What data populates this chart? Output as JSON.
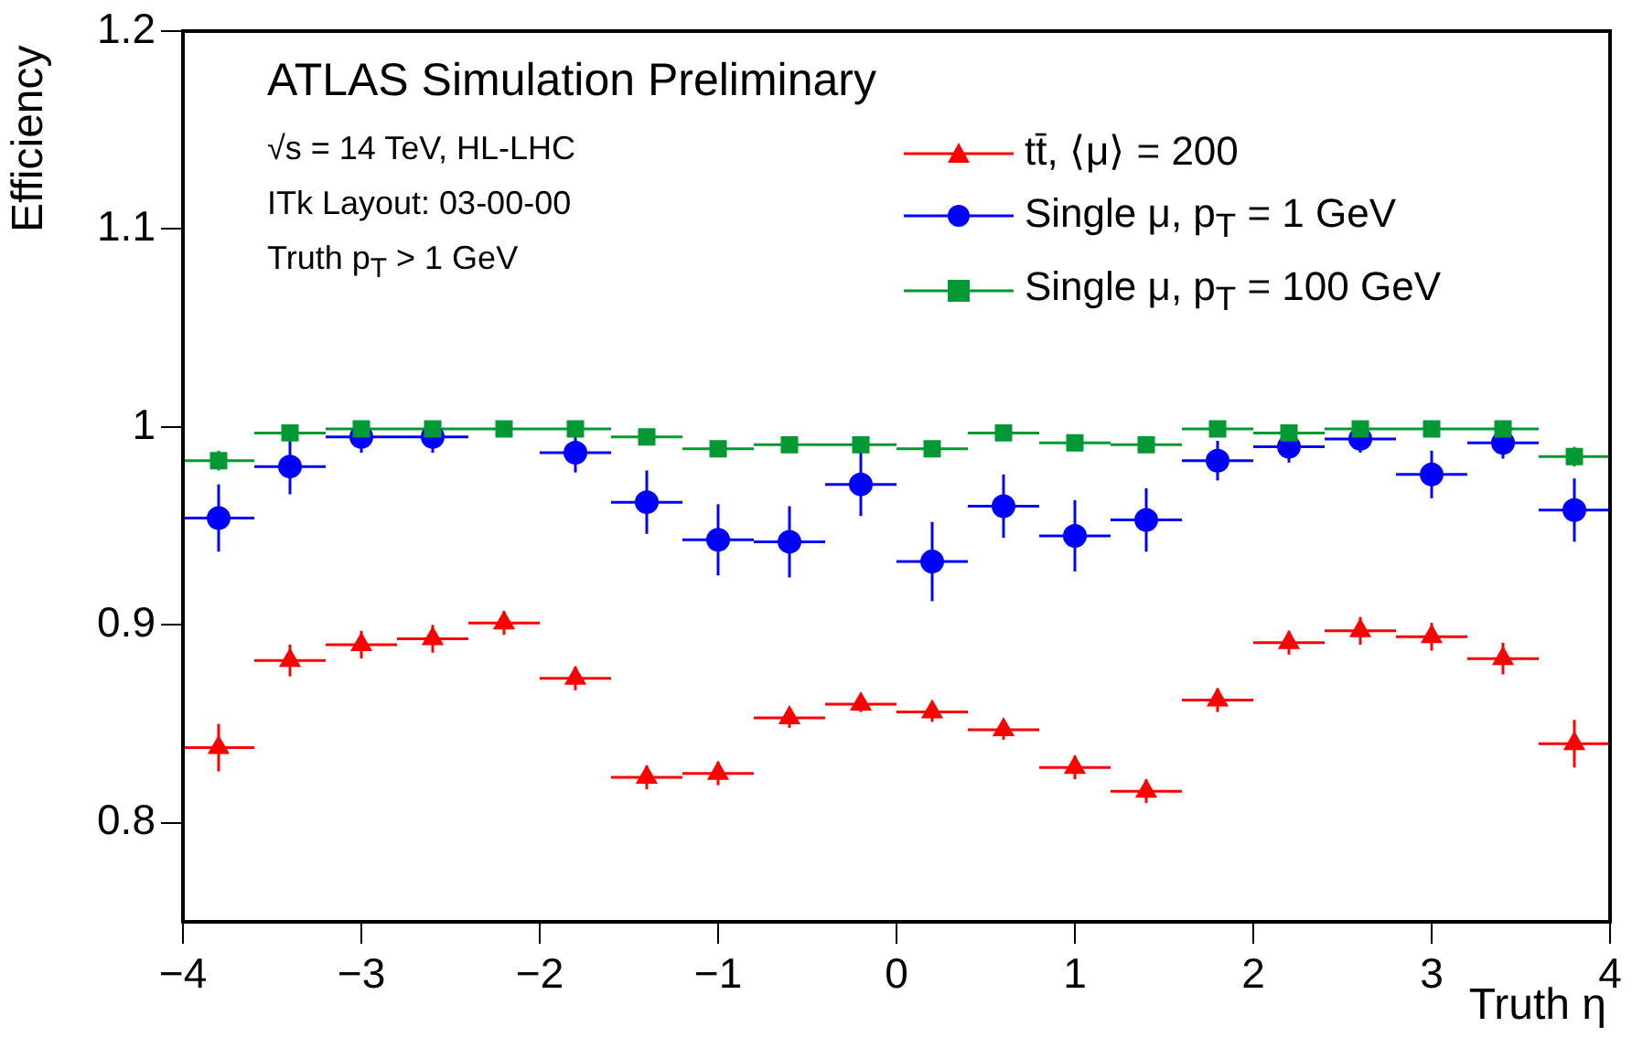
{
  "chart_data": {
    "type": "scatter",
    "title": "ATLAS Simulation Preliminary",
    "xlabel": "Truth η",
    "ylabel": "Efficiency",
    "annotations": [
      "√s = 14 TeV, HL-LHC",
      "ITk Layout: 03-00-00",
      "Truth p$_{T}$ > 1 GeV"
    ],
    "x": [
      -3.8,
      -3.4,
      -3.0,
      -2.6,
      -2.2,
      -1.8,
      -1.4,
      -1.0,
      -0.6,
      -0.2,
      0.2,
      0.6,
      1.0,
      1.4,
      1.8,
      2.2,
      2.6,
      3.0,
      3.4,
      3.8
    ],
    "xlim": [
      -4,
      4
    ],
    "xticks": [
      {
        "value": -4,
        "label": "−4"
      },
      {
        "value": -3,
        "label": "−3"
      },
      {
        "value": -2,
        "label": "−2"
      },
      {
        "value": -1,
        "label": "−1"
      },
      0,
      1,
      2,
      3,
      4
    ],
    "ylim": [
      0.75,
      1.2
    ],
    "yticks": [
      0.8,
      0.9,
      1,
      1.1,
      1.2
    ],
    "legend": "top right",
    "grid": false,
    "series": [
      {
        "name": "tt̄, ⟨μ⟩ = 200",
        "color": "#ff0000",
        "marker": "triangle",
        "values": [
          0.838,
          0.882,
          0.89,
          0.893,
          0.901,
          0.873,
          0.823,
          0.825,
          0.853,
          0.86,
          0.856,
          0.847,
          0.828,
          0.816,
          0.862,
          0.891,
          0.897,
          0.894,
          0.883,
          0.84
        ],
        "errors": [
          0.012,
          0.008,
          0.007,
          0.007,
          0.006,
          0.006,
          0.006,
          0.006,
          0.005,
          0.004,
          0.005,
          0.005,
          0.006,
          0.006,
          0.006,
          0.006,
          0.007,
          0.007,
          0.008,
          0.012
        ],
        "xerrors": [
          0.2,
          0.2,
          0.2,
          0.2,
          0.2,
          0.2,
          0.2,
          0.2,
          0.2,
          0.2,
          0.2,
          0.2,
          0.2,
          0.2,
          0.2,
          0.2,
          0.2,
          0.2,
          0.2,
          0.2
        ]
      },
      {
        "name": "Single μ, p$_{T}$ = 1 GeV",
        "color": "#0000ff",
        "marker": "circle",
        "values": [
          0.954,
          0.98,
          0.995,
          0.995,
          null,
          0.987,
          0.962,
          0.943,
          0.942,
          0.971,
          0.932,
          0.96,
          0.945,
          0.953,
          0.983,
          0.99,
          0.994,
          0.976,
          0.992,
          0.958
        ],
        "errors": [
          0.017,
          0.014,
          0.008,
          0.008,
          null,
          0.01,
          0.016,
          0.018,
          0.018,
          0.016,
          0.02,
          0.016,
          0.018,
          0.016,
          0.01,
          0.008,
          0.007,
          0.012,
          0.008,
          0.016
        ],
        "xerrors": [
          0.2,
          0.2,
          0.2,
          0.2,
          null,
          0.2,
          0.2,
          0.2,
          0.2,
          0.2,
          0.2,
          0.2,
          0.2,
          0.2,
          0.2,
          0.2,
          0.2,
          0.2,
          0.2,
          0.2
        ]
      },
      {
        "name": "Single μ, p$_{T}$ = 100 GeV",
        "color": "#009933",
        "marker": "square",
        "values": [
          0.983,
          0.997,
          0.999,
          0.999,
          0.999,
          0.999,
          0.995,
          0.989,
          0.991,
          0.991,
          0.989,
          0.997,
          0.992,
          0.991,
          0.999,
          0.997,
          0.999,
          0.999,
          0.999,
          0.985
        ],
        "errors": [
          0.005,
          0.003,
          0.002,
          0.002,
          0.002,
          0.002,
          0.003,
          0.004,
          0.004,
          0.004,
          0.004,
          0.003,
          0.004,
          0.004,
          0.002,
          0.003,
          0.002,
          0.002,
          0.002,
          0.005
        ],
        "xerrors": [
          0.2,
          0.2,
          0.2,
          0.2,
          0.2,
          0.2,
          0.2,
          0.2,
          0.2,
          0.2,
          0.2,
          0.2,
          0.2,
          0.2,
          0.2,
          0.2,
          0.2,
          0.2,
          0.2,
          0.2
        ]
      }
    ]
  }
}
